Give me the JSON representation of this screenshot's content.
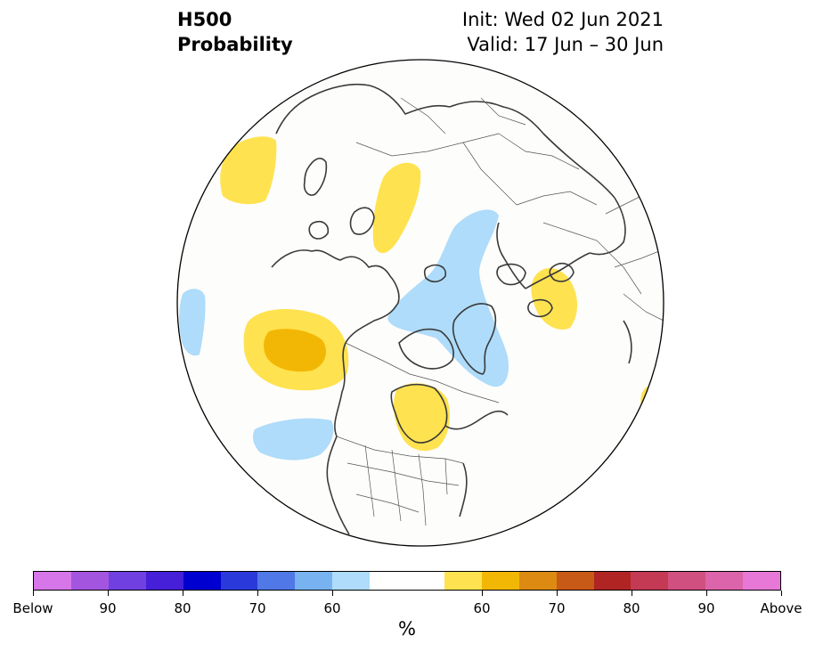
{
  "header": {
    "title_line1": "H500",
    "title_line2": "Probability",
    "init": "Init: Wed 02 Jun 2021",
    "valid": "Valid: 17 Jun – 30 Jun"
  },
  "map": {
    "projection": "north-polar-stereographic",
    "regions": [
      {
        "name": "north-pacific-anomaly",
        "category": "above",
        "level": 60
      },
      {
        "name": "north-pacific-anomaly-core",
        "category": "above",
        "level": 65
      },
      {
        "name": "hudson-bay-anomaly",
        "category": "above",
        "level": 60
      },
      {
        "name": "barents-anomaly",
        "category": "above",
        "level": 60
      },
      {
        "name": "west-pacific-anomaly",
        "category": "above",
        "level": 60
      },
      {
        "name": "siberia-anomaly",
        "category": "above",
        "level": 60
      },
      {
        "name": "greenland-anomaly",
        "category": "below",
        "level": 60
      },
      {
        "name": "northwest-us-anomaly",
        "category": "below",
        "level": 60
      },
      {
        "name": "pacific-edge-anomaly",
        "category": "below",
        "level": 60
      }
    ],
    "colors": {
      "above_60": "#FFE24F",
      "above_65": "#F2B705",
      "below_60": "#AEDCFA",
      "coast": "#3a3a3a",
      "border": "#555555"
    }
  },
  "colorbar": {
    "unit": "%",
    "segments": [
      "#D676E8",
      "#A455E0",
      "#7040E0",
      "#4520D8",
      "#0000D0",
      "#2A3ADA",
      "#5078E6",
      "#78B2F0",
      "#AEDCFA",
      "#FFFFFF",
      "#FFE24F",
      "#F2B705",
      "#DC8A12",
      "#C85A18",
      "#B02424",
      "#C43A54",
      "#D05080",
      "#DC64AA",
      "#E878D8"
    ],
    "tick_labels": [
      "Below",
      "90",
      "80",
      "70",
      "60",
      "60",
      "70",
      "80",
      "90",
      "Above"
    ]
  }
}
